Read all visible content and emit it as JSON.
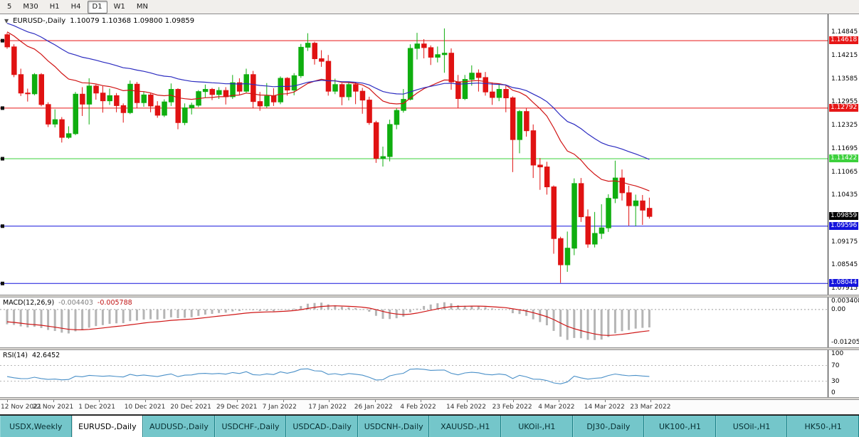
{
  "toolbar": {
    "periods": [
      {
        "label": "5",
        "active": false
      },
      {
        "label": "M30",
        "active": false
      },
      {
        "label": "H1",
        "active": false
      },
      {
        "label": "H4",
        "active": false
      },
      {
        "label": "D1",
        "active": true
      },
      {
        "label": "W1",
        "active": false
      },
      {
        "label": "MN",
        "active": false
      }
    ]
  },
  "chart_header": {
    "dropdown_icon": "▼",
    "symbol": "EURUSD-,Daily",
    "ohlc_text": "1.10079 1.10368 1.09800 1.09859"
  },
  "chart_data": {
    "type": "candlestick",
    "title": "EURUSD-,Daily",
    "y_range": [
      1.0778,
      1.1518
    ],
    "candle_colors": {
      "up": "#0fae0f",
      "down": "#e01212"
    },
    "price_scale_ticks": [
      "1.14845",
      "1.14215",
      "1.13585",
      "1.12955",
      "1.12325",
      "1.11695",
      "1.11065",
      "1.10435",
      "1.09175",
      "1.08545",
      "1.07915"
    ],
    "horizontal_lines": [
      {
        "price": 1.14618,
        "label": "1.14618",
        "color": "#e61717"
      },
      {
        "price": 1.12792,
        "label": "1.12792",
        "color": "#e61717"
      },
      {
        "price": 1.11422,
        "label": "1.11422",
        "color": "#3dd13d"
      },
      {
        "price": 1.09596,
        "label": "1.09596",
        "color": "#1414dc"
      },
      {
        "price": 1.08044,
        "label": "1.08044",
        "color": "#1414dc"
      }
    ],
    "current_price": {
      "value": 1.09859,
      "label": "1.09859",
      "badge_color": "#000000"
    },
    "last_quote": {
      "open": "1.10079",
      "high": "1.10368",
      "low": "1.09800",
      "close": "1.09859"
    },
    "moving_averages": [
      {
        "period": 20,
        "color": "#d01414"
      },
      {
        "period": 42,
        "color": "#2b2bc0"
      }
    ],
    "x_tick_labels": [
      "12 Nov 2021",
      "22 Nov 2021",
      "1 Dec 2021",
      "10 Dec 2021",
      "20 Dec 2021",
      "29 Dec 2021",
      "7 Jan 2022",
      "17 Jan 2022",
      "26 Jan 2022",
      "4 Feb 2022",
      "14 Feb 2022",
      "23 Feb 2022",
      "4 Mar 2022",
      "14 Mar 2022",
      "23 Mar 2022"
    ],
    "ohlc": [
      [
        1.1478,
        1.1483,
        1.144,
        1.1445
      ],
      [
        1.1445,
        1.1452,
        1.1363,
        1.137
      ],
      [
        1.137,
        1.1386,
        1.1312,
        1.132
      ],
      [
        1.132,
        1.1332,
        1.1297,
        1.1318
      ],
      [
        1.1318,
        1.1374,
        1.1314,
        1.137
      ],
      [
        1.137,
        1.1374,
        1.1284,
        1.1289
      ],
      [
        1.1289,
        1.1295,
        1.1228,
        1.1236
      ],
      [
        1.1236,
        1.1276,
        1.1227,
        1.1248
      ],
      [
        1.1248,
        1.1255,
        1.1186,
        1.12
      ],
      [
        1.12,
        1.123,
        1.1196,
        1.121
      ],
      [
        1.121,
        1.1323,
        1.1206,
        1.1317
      ],
      [
        1.1317,
        1.1336,
        1.1258,
        1.129
      ],
      [
        1.129,
        1.136,
        1.1235,
        1.1339
      ],
      [
        1.1339,
        1.1343,
        1.1302,
        1.132
      ],
      [
        1.132,
        1.1339,
        1.1267,
        1.1299
      ],
      [
        1.1299,
        1.1332,
        1.1288,
        1.1313
      ],
      [
        1.1313,
        1.132,
        1.1268,
        1.1286
      ],
      [
        1.1286,
        1.1292,
        1.124,
        1.1267
      ],
      [
        1.1267,
        1.1354,
        1.1263,
        1.1344
      ],
      [
        1.1344,
        1.135,
        1.128,
        1.1294
      ],
      [
        1.1294,
        1.1324,
        1.1283,
        1.1315
      ],
      [
        1.1315,
        1.1319,
        1.1268,
        1.1285
      ],
      [
        1.1285,
        1.1298,
        1.1253,
        1.126
      ],
      [
        1.126,
        1.1303,
        1.1255,
        1.1296
      ],
      [
        1.1296,
        1.1346,
        1.1285,
        1.133
      ],
      [
        1.133,
        1.1333,
        1.1222,
        1.124
      ],
      [
        1.124,
        1.1292,
        1.1233,
        1.128
      ],
      [
        1.128,
        1.1294,
        1.1262,
        1.1287
      ],
      [
        1.1287,
        1.1328,
        1.1282,
        1.1324
      ],
      [
        1.1324,
        1.1343,
        1.1308,
        1.133
      ],
      [
        1.133,
        1.1334,
        1.1301,
        1.1316
      ],
      [
        1.1316,
        1.1336,
        1.1304,
        1.1327
      ],
      [
        1.1327,
        1.1336,
        1.1289,
        1.131
      ],
      [
        1.131,
        1.1369,
        1.1304,
        1.1348
      ],
      [
        1.1348,
        1.136,
        1.1316,
        1.1325
      ],
      [
        1.1325,
        1.1386,
        1.1321,
        1.137
      ],
      [
        1.137,
        1.138,
        1.1279,
        1.1297
      ],
      [
        1.1297,
        1.1323,
        1.1272,
        1.1285
      ],
      [
        1.1285,
        1.1347,
        1.128,
        1.1312
      ],
      [
        1.1312,
        1.1333,
        1.1285,
        1.1296
      ],
      [
        1.1296,
        1.1365,
        1.129,
        1.136
      ],
      [
        1.136,
        1.1363,
        1.1313,
        1.1328
      ],
      [
        1.1328,
        1.1374,
        1.1314,
        1.1367
      ],
      [
        1.1367,
        1.1453,
        1.1361,
        1.1444
      ],
      [
        1.1444,
        1.1482,
        1.1434,
        1.1455
      ],
      [
        1.1455,
        1.1459,
        1.1397,
        1.1413
      ],
      [
        1.1413,
        1.1436,
        1.1391,
        1.1406
      ],
      [
        1.1406,
        1.1423,
        1.1313,
        1.1325
      ],
      [
        1.1325,
        1.1359,
        1.1317,
        1.1343
      ],
      [
        1.1343,
        1.1347,
        1.1287,
        1.131
      ],
      [
        1.131,
        1.1349,
        1.13,
        1.1343
      ],
      [
        1.1343,
        1.1349,
        1.129,
        1.1325
      ],
      [
        1.1325,
        1.1334,
        1.1264,
        1.1301
      ],
      [
        1.1301,
        1.131,
        1.1234,
        1.124
      ],
      [
        1.124,
        1.1245,
        1.1131,
        1.1143
      ],
      [
        1.1143,
        1.1175,
        1.1121,
        1.1148
      ],
      [
        1.1148,
        1.1248,
        1.1135,
        1.1235
      ],
      [
        1.1235,
        1.1279,
        1.1222,
        1.1273
      ],
      [
        1.1273,
        1.1331,
        1.1267,
        1.1303
      ],
      [
        1.1303,
        1.1452,
        1.13,
        1.1441
      ],
      [
        1.1441,
        1.1483,
        1.1411,
        1.1453
      ],
      [
        1.1453,
        1.1466,
        1.1414,
        1.1443
      ],
      [
        1.1443,
        1.1449,
        1.1396,
        1.1417
      ],
      [
        1.1417,
        1.1446,
        1.1403,
        1.1424
      ],
      [
        1.1424,
        1.1495,
        1.1375,
        1.1428
      ],
      [
        1.1428,
        1.1441,
        1.1329,
        1.135
      ],
      [
        1.135,
        1.1369,
        1.128,
        1.1305
      ],
      [
        1.1305,
        1.1369,
        1.1301,
        1.1357
      ],
      [
        1.1357,
        1.1395,
        1.134,
        1.1374
      ],
      [
        1.1374,
        1.1384,
        1.1324,
        1.1362
      ],
      [
        1.1362,
        1.1377,
        1.1313,
        1.1323
      ],
      [
        1.1323,
        1.1349,
        1.1288,
        1.1308
      ],
      [
        1.1308,
        1.1343,
        1.1298,
        1.133
      ],
      [
        1.133,
        1.1342,
        1.1268,
        1.1307
      ],
      [
        1.1307,
        1.1311,
        1.1106,
        1.1194
      ],
      [
        1.1194,
        1.1274,
        1.1157,
        1.127
      ],
      [
        1.127,
        1.128,
        1.1202,
        1.1218
      ],
      [
        1.1218,
        1.1235,
        1.109,
        1.1125
      ],
      [
        1.1125,
        1.1144,
        1.1058,
        1.112
      ],
      [
        1.112,
        1.1134,
        1.1045,
        1.1066
      ],
      [
        1.1066,
        1.107,
        1.0885,
        1.0926
      ],
      [
        1.0926,
        1.0931,
        1.0806,
        1.0855
      ],
      [
        1.0855,
        1.0945,
        1.0836,
        1.09
      ],
      [
        1.09,
        1.1089,
        1.0881,
        1.1075
      ],
      [
        1.1075,
        1.109,
        1.0971,
        1.0985
      ],
      [
        1.0985,
        1.1005,
        1.0901,
        1.0911
      ],
      [
        1.0911,
        1.0998,
        1.0902,
        1.094
      ],
      [
        1.094,
        1.1019,
        1.0925,
        1.0955
      ],
      [
        1.0955,
        1.1046,
        1.0944,
        1.1035
      ],
      [
        1.1035,
        1.1137,
        1.1022,
        1.109
      ],
      [
        1.109,
        1.1113,
        1.1029,
        1.105
      ],
      [
        1.105,
        1.1069,
        1.0961,
        1.1015
      ],
      [
        1.1015,
        1.1045,
        1.096,
        1.1028
      ],
      [
        1.1028,
        1.1044,
        1.0963,
        1.1003
      ],
      [
        1.10079,
        1.10368,
        1.098,
        1.09859
      ]
    ],
    "macd": {
      "label": "MACD(12,26,9)",
      "main": "-0.004403",
      "signal": "-0.005788",
      "range": [
        -0.012058,
        0.003408
      ],
      "scale_ticks": [
        {
          "text": "0.003408",
          "v": 0.003408
        },
        {
          "text": "0.00",
          "v": 0
        },
        {
          "text": "-0.012058",
          "v": -0.012058
        }
      ],
      "histogram_color": "#b5b5b5",
      "signal_color": "#cf1515"
    },
    "rsi": {
      "label": "RSI(14)",
      "value": "42.6452",
      "range": [
        0,
        100
      ],
      "levels": [
        70,
        30
      ],
      "scale_ticks": [
        {
          "text": "100",
          "v": 100
        },
        {
          "text": "70",
          "v": 70
        },
        {
          "text": "30",
          "v": 30
        },
        {
          "text": "0",
          "v": 0
        }
      ],
      "line_color": "#4a90c8"
    }
  },
  "tabs": [
    {
      "label": "USDX,Weekly",
      "active": false
    },
    {
      "label": "EURUSD-,Daily",
      "active": true
    },
    {
      "label": "AUDUSD-,Daily",
      "active": false
    },
    {
      "label": "USDCHF-,Daily",
      "active": false
    },
    {
      "label": "USDCAD-,Daily",
      "active": false
    },
    {
      "label": "USDCNH-,Daily",
      "active": false
    },
    {
      "label": "XAUUSD-,H1",
      "active": false
    },
    {
      "label": "UKOil-,H1",
      "active": false
    },
    {
      "label": "DJ30-,Daily",
      "active": false
    },
    {
      "label": "UK100-,H1",
      "active": false
    },
    {
      "label": "USOil-,H1",
      "active": false
    },
    {
      "label": "HK50-,H1",
      "active": false
    }
  ]
}
